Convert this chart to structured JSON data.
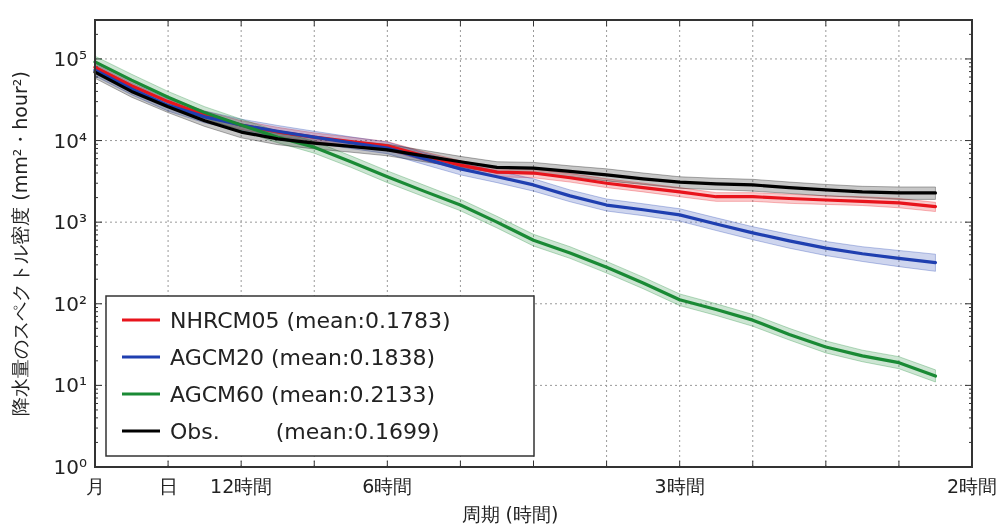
{
  "chart_data": {
    "type": "line",
    "xlabel": "周期 (時間)",
    "ylabel": "降水量のスペクトル密度 (mm²・hour²)",
    "log": "y",
    "grid": true,
    "legend": "bottom left",
    "ylim": [
      1,
      300000
    ],
    "categories": [
      "月",
      null,
      "日",
      null,
      "12時間",
      null,
      null,
      null,
      "6時間",
      null,
      null,
      null,
      null,
      null,
      null,
      null,
      "3時間",
      null,
      null,
      null,
      null,
      null,
      null,
      null,
      "2時間"
    ],
    "yticks": [
      {
        "value": 1,
        "label": "10⁰"
      },
      {
        "value": 10,
        "label": "10¹"
      },
      {
        "value": 100,
        "label": "10²"
      },
      {
        "value": 1000,
        "label": "10³"
      },
      {
        "value": 10000,
        "label": "10⁴"
      },
      {
        "value": 100000,
        "label": "10⁵"
      }
    ],
    "series": [
      {
        "name": "NHRCM05 (mean:0.1783)",
        "color": "#e8141c",
        "values": [
          79000,
          47000,
          30000,
          20500,
          15500,
          12800,
          11000,
          9700,
          8600,
          6500,
          5000,
          4100,
          4000,
          3500,
          3000,
          2650,
          2350,
          2050,
          2050,
          1950,
          1870,
          1800,
          1720,
          1550,
          null
        ],
        "lower": [
          70000,
          41000,
          26500,
          18000,
          13600,
          11300,
          9700,
          8500,
          7600,
          5700,
          4400,
          3600,
          3500,
          3100,
          2650,
          2350,
          2050,
          1800,
          1800,
          1700,
          1650,
          1600,
          1500,
          1350,
          null
        ],
        "upper": [
          89000,
          53000,
          34000,
          23000,
          17500,
          14500,
          12400,
          11000,
          9700,
          7300,
          5650,
          4650,
          4500,
          3950,
          3400,
          3000,
          2650,
          2300,
          2300,
          2200,
          2100,
          2050,
          1950,
          1750,
          null
        ]
      },
      {
        "name": "AGCM20 (mean:0.1838)",
        "color": "#1f3fb0",
        "values": [
          73000,
          43000,
          27000,
          19500,
          15500,
          13000,
          11000,
          9400,
          8100,
          6000,
          4500,
          3600,
          2860,
          2100,
          1620,
          1420,
          1230,
          950,
          740,
          590,
          480,
          410,
          360,
          320,
          null
        ],
        "lower": [
          62000,
          36500,
          23000,
          16500,
          13200,
          11000,
          9300,
          8000,
          6900,
          5100,
          3800,
          3050,
          2400,
          1780,
          1370,
          1200,
          1030,
          790,
          610,
          480,
          390,
          330,
          285,
          250,
          null
        ],
        "upper": [
          86000,
          51000,
          32000,
          23000,
          18300,
          15300,
          13000,
          11100,
          9600,
          7100,
          5300,
          4250,
          3400,
          2480,
          1920,
          1680,
          1460,
          1130,
          880,
          710,
          580,
          500,
          450,
          405,
          null
        ]
      },
      {
        "name": "AGCM60 (mean:0.2133)",
        "color": "#1a8a35",
        "values": [
          92000,
          55000,
          34000,
          22000,
          15500,
          11000,
          8300,
          5500,
          3600,
          2400,
          1620,
          1000,
          600,
          420,
          280,
          180,
          112,
          85,
          63,
          42,
          29.5,
          23,
          19,
          13,
          null
        ],
        "lower": [
          78000,
          47000,
          29000,
          18700,
          13200,
          9400,
          7000,
          4700,
          3050,
          2050,
          1380,
          850,
          510,
          360,
          238,
          153,
          95,
          72,
          53,
          36,
          25,
          19.5,
          16,
          11,
          null
        ],
        "upper": [
          108000,
          65000,
          40000,
          26000,
          18300,
          13000,
          9800,
          6500,
          4250,
          2850,
          1910,
          1180,
          710,
          500,
          330,
          212,
          132,
          100,
          74,
          50,
          35,
          27,
          22.5,
          15.5,
          null
        ]
      },
      {
        "name": "Obs.        (mean:0.1699)",
        "color": "#000000",
        "values": [
          69000,
          40000,
          26000,
          17500,
          12700,
          10500,
          9300,
          8500,
          7700,
          6500,
          5500,
          4700,
          4600,
          4200,
          3800,
          3400,
          3100,
          2950,
          2860,
          2650,
          2480,
          2350,
          2280,
          2280,
          null
        ],
        "lower": [
          58000,
          34000,
          22000,
          14900,
          10800,
          8900,
          7900,
          7200,
          6500,
          5500,
          4700,
          4000,
          3900,
          3600,
          3200,
          2900,
          2600,
          2500,
          2400,
          2250,
          2100,
          2000,
          1900,
          1900,
          null
        ],
        "upper": [
          80000,
          47000,
          30000,
          20500,
          14900,
          12300,
          10900,
          9900,
          9000,
          7600,
          6400,
          5500,
          5400,
          4900,
          4500,
          4000,
          3600,
          3450,
          3350,
          3100,
          2900,
          2750,
          2700,
          2700,
          null
        ]
      }
    ]
  }
}
